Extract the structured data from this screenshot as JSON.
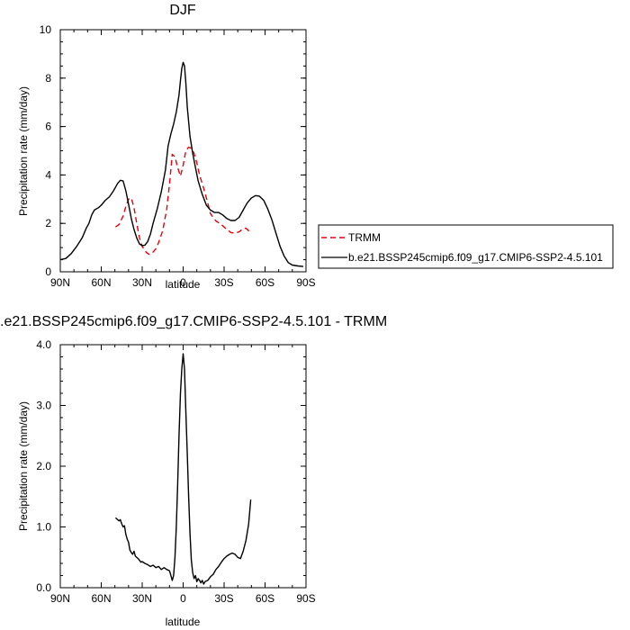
{
  "chart_data": [
    {
      "type": "line",
      "title": "DJF",
      "xlabel": "latitude",
      "ylabel": "Precipitation rate (mm/day)",
      "xlim": [
        90,
        -90
      ],
      "ylim": [
        0,
        10
      ],
      "x_ticks": [
        {
          "value": 90,
          "label": "90N"
        },
        {
          "value": 60,
          "label": "60N"
        },
        {
          "value": 30,
          "label": "30N"
        },
        {
          "value": 0,
          "label": "0"
        },
        {
          "value": -30,
          "label": "30S"
        },
        {
          "value": -60,
          "label": "60S"
        },
        {
          "value": -90,
          "label": "90S"
        }
      ],
      "y_ticks": [
        {
          "value": 0,
          "label": "0"
        },
        {
          "value": 2,
          "label": "2"
        },
        {
          "value": 4,
          "label": "4"
        },
        {
          "value": 6,
          "label": "6"
        },
        {
          "value": 8,
          "label": "8"
        },
        {
          "value": 10,
          "label": "10"
        }
      ],
      "series": [
        {
          "name": "TRMM",
          "color": "#e8000b",
          "dash": "dashed",
          "points": [
            [
              49.5,
              1.85
            ],
            [
              47,
              1.95
            ],
            [
              44,
              2.3
            ],
            [
              42,
              2.7
            ],
            [
              40,
              3.0
            ],
            [
              38,
              3.05
            ],
            [
              36,
              2.65
            ],
            [
              34,
              2.0
            ],
            [
              32,
              1.4
            ],
            [
              30,
              1.05
            ],
            [
              27,
              0.8
            ],
            [
              25,
              0.72
            ],
            [
              23,
              0.75
            ],
            [
              20,
              0.95
            ],
            [
              18,
              1.2
            ],
            [
              15,
              1.7
            ],
            [
              12,
              2.6
            ],
            [
              10,
              3.6
            ],
            [
              8,
              4.85
            ],
            [
              6,
              4.75
            ],
            [
              4,
              4.3
            ],
            [
              2,
              3.95
            ],
            [
              0,
              4.4
            ],
            [
              -2,
              5.0
            ],
            [
              -4,
              5.15
            ],
            [
              -6,
              5.1
            ],
            [
              -8,
              4.9
            ],
            [
              -10,
              4.5
            ],
            [
              -12,
              4.0
            ],
            [
              -15,
              3.45
            ],
            [
              -18,
              2.85
            ],
            [
              -20,
              2.4
            ],
            [
              -24,
              2.1
            ],
            [
              -28,
              1.95
            ],
            [
              -32,
              1.75
            ],
            [
              -35,
              1.62
            ],
            [
              -38,
              1.6
            ],
            [
              -41,
              1.65
            ],
            [
              -44,
              1.78
            ],
            [
              -46,
              1.8
            ],
            [
              -48,
              1.7
            ],
            [
              -49.5,
              1.55
            ]
          ]
        },
        {
          "name": "b.e21.BSSP245cmip6.f09_g17.CMIP6-SSP2-4.5.101",
          "color": "#000000",
          "dash": "solid",
          "points": [
            [
              90,
              0.5
            ],
            [
              86,
              0.55
            ],
            [
              82,
              0.75
            ],
            [
              78,
              1.05
            ],
            [
              74,
              1.4
            ],
            [
              71,
              1.8
            ],
            [
              69,
              2.0
            ],
            [
              67,
              2.35
            ],
            [
              65,
              2.55
            ],
            [
              62,
              2.65
            ],
            [
              60,
              2.75
            ],
            [
              57,
              2.95
            ],
            [
              54,
              3.1
            ],
            [
              51,
              3.35
            ],
            [
              48,
              3.65
            ],
            [
              46,
              3.78
            ],
            [
              44,
              3.75
            ],
            [
              42,
              3.35
            ],
            [
              40,
              2.8
            ],
            [
              38,
              2.2
            ],
            [
              36,
              1.75
            ],
            [
              34,
              1.4
            ],
            [
              32,
              1.15
            ],
            [
              30,
              1.08
            ],
            [
              28,
              1.1
            ],
            [
              26,
              1.25
            ],
            [
              24,
              1.55
            ],
            [
              22,
              2.0
            ],
            [
              19,
              2.6
            ],
            [
              16,
              3.3
            ],
            [
              13,
              4.2
            ],
            [
              11,
              5.2
            ],
            [
              9,
              5.7
            ],
            [
              7,
              6.1
            ],
            [
              5,
              6.6
            ],
            [
              3,
              7.3
            ],
            [
              2,
              7.9
            ],
            [
              1,
              8.4
            ],
            [
              0,
              8.65
            ],
            [
              -1,
              8.5
            ],
            [
              -2,
              7.8
            ],
            [
              -3,
              6.8
            ],
            [
              -5,
              5.6
            ],
            [
              -7,
              4.9
            ],
            [
              -9,
              4.3
            ],
            [
              -11,
              3.75
            ],
            [
              -14,
              3.2
            ],
            [
              -17,
              2.75
            ],
            [
              -20,
              2.55
            ],
            [
              -23,
              2.45
            ],
            [
              -26,
              2.45
            ],
            [
              -29,
              2.35
            ],
            [
              -32,
              2.2
            ],
            [
              -35,
              2.12
            ],
            [
              -38,
              2.12
            ],
            [
              -41,
              2.25
            ],
            [
              -44,
              2.55
            ],
            [
              -47,
              2.85
            ],
            [
              -50,
              3.05
            ],
            [
              -53,
              3.15
            ],
            [
              -56,
              3.12
            ],
            [
              -59,
              2.95
            ],
            [
              -62,
              2.6
            ],
            [
              -65,
              2.15
            ],
            [
              -68,
              1.6
            ],
            [
              -71,
              1.05
            ],
            [
              -74,
              0.65
            ],
            [
              -77,
              0.38
            ],
            [
              -80,
              0.28
            ],
            [
              -84,
              0.24
            ],
            [
              -88,
              0.22
            ]
          ]
        }
      ],
      "legend": {
        "placement": "right"
      }
    },
    {
      "type": "line",
      "title": ".e21.BSSP245cmip6.f09_g17.CMIP6-SSP2-4.5.101 - TRMM",
      "xlabel": "latitude",
      "ylabel": "Precipitation rate (mm/day)",
      "xlim": [
        90,
        -90
      ],
      "ylim": [
        0,
        4
      ],
      "x_ticks": [
        {
          "value": 90,
          "label": "90N"
        },
        {
          "value": 60,
          "label": "60N"
        },
        {
          "value": 30,
          "label": "30N"
        },
        {
          "value": 0,
          "label": "0"
        },
        {
          "value": -30,
          "label": "30S"
        },
        {
          "value": -60,
          "label": "60S"
        },
        {
          "value": -90,
          "label": "90S"
        }
      ],
      "y_ticks": [
        {
          "value": 0,
          "label": "0.0"
        },
        {
          "value": 1,
          "label": "1.0"
        },
        {
          "value": 2,
          "label": "2.0"
        },
        {
          "value": 3,
          "label": "3.0"
        },
        {
          "value": 4,
          "label": "4.0"
        }
      ],
      "series": [
        {
          "color": "#000000",
          "dash": "solid",
          "points": [
            [
              49.5,
              1.15
            ],
            [
              48,
              1.12
            ],
            [
              47,
              1.1
            ],
            [
              46,
              1.12
            ],
            [
              45,
              1.05
            ],
            [
              44,
              1.0
            ],
            [
              43,
              1.02
            ],
            [
              42,
              0.88
            ],
            [
              41,
              0.8
            ],
            [
              40,
              0.75
            ],
            [
              39,
              0.62
            ],
            [
              38,
              0.58
            ],
            [
              37,
              0.55
            ],
            [
              36,
              0.6
            ],
            [
              35,
              0.52
            ],
            [
              34,
              0.5
            ],
            [
              33,
              0.48
            ],
            [
              32,
              0.45
            ],
            [
              31,
              0.42
            ],
            [
              30,
              0.43
            ],
            [
              28,
              0.4
            ],
            [
              26,
              0.38
            ],
            [
              24,
              0.35
            ],
            [
              22,
              0.37
            ],
            [
              20,
              0.33
            ],
            [
              18,
              0.35
            ],
            [
              16,
              0.3
            ],
            [
              14,
              0.33
            ],
            [
              12,
              0.3
            ],
            [
              10,
              0.28
            ],
            [
              9,
              0.2
            ],
            [
              8,
              0.12
            ],
            [
              7,
              0.2
            ],
            [
              6,
              0.5
            ],
            [
              5,
              1.0
            ],
            [
              4,
              1.7
            ],
            [
              3,
              2.5
            ],
            [
              2,
              3.2
            ],
            [
              1,
              3.6
            ],
            [
              0,
              3.85
            ],
            [
              -1,
              3.6
            ],
            [
              -2,
              2.9
            ],
            [
              -3,
              2.2
            ],
            [
              -4,
              1.5
            ],
            [
              -5,
              0.9
            ],
            [
              -6,
              0.45
            ],
            [
              -7,
              0.25
            ],
            [
              -8,
              0.15
            ],
            [
              -9,
              0.2
            ],
            [
              -10,
              0.1
            ],
            [
              -11,
              0.15
            ],
            [
              -12,
              0.12
            ],
            [
              -13,
              0.08
            ],
            [
              -14,
              0.12
            ],
            [
              -15,
              0.06
            ],
            [
              -16,
              0.1
            ],
            [
              -18,
              0.12
            ],
            [
              -20,
              0.18
            ],
            [
              -22,
              0.22
            ],
            [
              -24,
              0.3
            ],
            [
              -26,
              0.35
            ],
            [
              -28,
              0.42
            ],
            [
              -30,
              0.48
            ],
            [
              -32,
              0.52
            ],
            [
              -34,
              0.55
            ],
            [
              -36,
              0.57
            ],
            [
              -38,
              0.55
            ],
            [
              -40,
              0.5
            ],
            [
              -42,
              0.48
            ],
            [
              -44,
              0.6
            ],
            [
              -46,
              0.78
            ],
            [
              -48,
              1.05
            ],
            [
              -49.5,
              1.45
            ]
          ]
        }
      ]
    }
  ]
}
